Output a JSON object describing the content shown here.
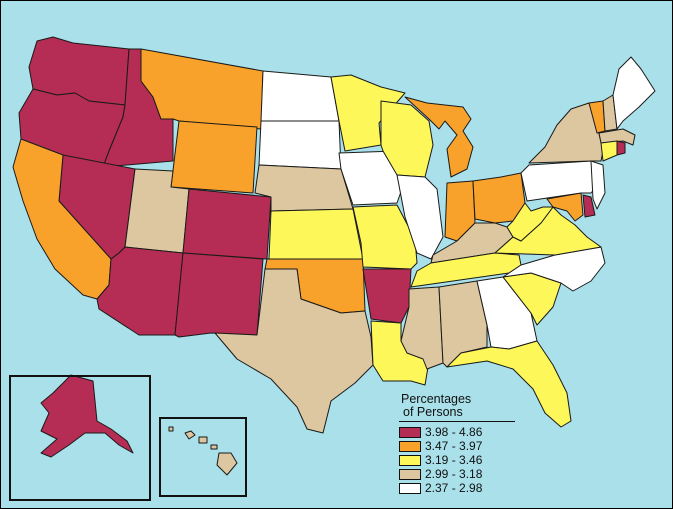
{
  "legend": {
    "title_line1": "Percentages",
    "title_line2": "of Persons",
    "classes": [
      {
        "label": "3.98 - 4.86",
        "color": "#b52d54"
      },
      {
        "label": "3.47 - 3.97",
        "color": "#f8a22c"
      },
      {
        "label": "3.19 - 3.46",
        "color": "#fdf75a"
      },
      {
        "label": "2.99 - 3.18",
        "color": "#dcc7a0"
      },
      {
        "label": "2.37 - 2.98",
        "color": "#ffffff"
      }
    ]
  },
  "colors": {
    "water": "#a9e0ea",
    "border": "#1a1a1a"
  },
  "states": {
    "WA": 0,
    "OR": 0,
    "ID": 0,
    "NV": 0,
    "AZ": 0,
    "NM": 0,
    "CO": 0,
    "AR": 0,
    "AK": 0,
    "DE": 0,
    "RI": 0,
    "CA": 1,
    "MT": 1,
    "WY": 1,
    "OK": 1,
    "MI": 1,
    "IN": 1,
    "OH": 1,
    "VT": 1,
    "MD": 1,
    "MN": 2,
    "WI": 2,
    "KS": 2,
    "MO": 2,
    "TN": 2,
    "WV": 2,
    "VA": 2,
    "LA": 2,
    "FL": 2,
    "SC": 2,
    "CT": 2,
    "UT": 3,
    "NE": 3,
    "TX": 3,
    "MS": 3,
    "AL": 3,
    "KY": 3,
    "NY": 3,
    "NH": 3,
    "MA": 3,
    "HI": 3,
    "ND": 4,
    "SD": 4,
    "IA": 4,
    "IL": 4,
    "GA": 4,
    "NC": 4,
    "PA": 4,
    "NJ": 4,
    "ME": 4
  }
}
